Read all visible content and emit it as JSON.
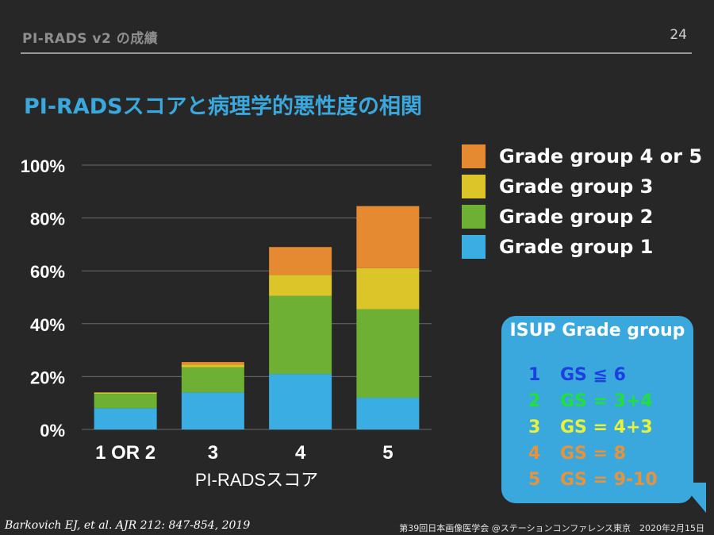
{
  "header": {
    "title": "PI-RADS v2 の成績",
    "page_number": "24"
  },
  "slide_title": "PI-RADSスコアと病理学的悪性度の相関",
  "colors": {
    "background": "#272727",
    "grade_group_1": "#3aaee2",
    "grade_group_2": "#6db033",
    "grade_group_3": "#dcc529",
    "grade_group_4_or_5": "#e58a30",
    "isup_box": "#3aa8dc",
    "title_blue": "#3aa8dc"
  },
  "chart_data": {
    "type": "bar",
    "stacked": true,
    "categories": [
      "1 OR 2",
      "3",
      "4",
      "5"
    ],
    "series": [
      {
        "name": "Grade group 1",
        "values": [
          8,
          14,
          21,
          12
        ]
      },
      {
        "name": "Grade group 2",
        "values": [
          5.5,
          9.5,
          29.5,
          33.5
        ]
      },
      {
        "name": "Grade group 3",
        "values": [
          0.5,
          1,
          8,
          15.5
        ]
      },
      {
        "name": "Grade group 4 or 5",
        "values": [
          0,
          1,
          10.5,
          23.5
        ]
      }
    ],
    "yticks": [
      "0%",
      "20%",
      "40%",
      "60%",
      "80%",
      "100%"
    ],
    "ylim": [
      0,
      100
    ],
    "xlabel": "PI-RADSスコア",
    "ylabel": "",
    "grid": true,
    "legend_position": "top-right"
  },
  "legend": {
    "items": [
      {
        "label": "Grade group 4 or 5",
        "color": "#e58a30"
      },
      {
        "label": "Grade group 3",
        "color": "#dcc529"
      },
      {
        "label": "Grade group 2",
        "color": "#6db033"
      },
      {
        "label": "Grade group 1",
        "color": "#3aaee2"
      }
    ]
  },
  "isup": {
    "title": "ISUP Grade group",
    "rows": [
      {
        "grade": "1",
        "gs": "GS ≦ 6",
        "color": "#1c3fe0"
      },
      {
        "grade": "2",
        "gs": "GS = 3+4",
        "color": "#22e03a"
      },
      {
        "grade": "3",
        "gs": "GS = 4+3",
        "color": "#e8f23a"
      },
      {
        "grade": "4",
        "gs": "GS = 8",
        "color": "#e8923a"
      },
      {
        "grade": "5",
        "gs": "GS = 9-10",
        "color": "#e8923a"
      }
    ]
  },
  "citation": "Barkovich EJ, et al. AJR 212: 847-854, 2019",
  "footer": "第39回日本画像医学会 @ステーションコンファレンス東京　2020年2月15日"
}
